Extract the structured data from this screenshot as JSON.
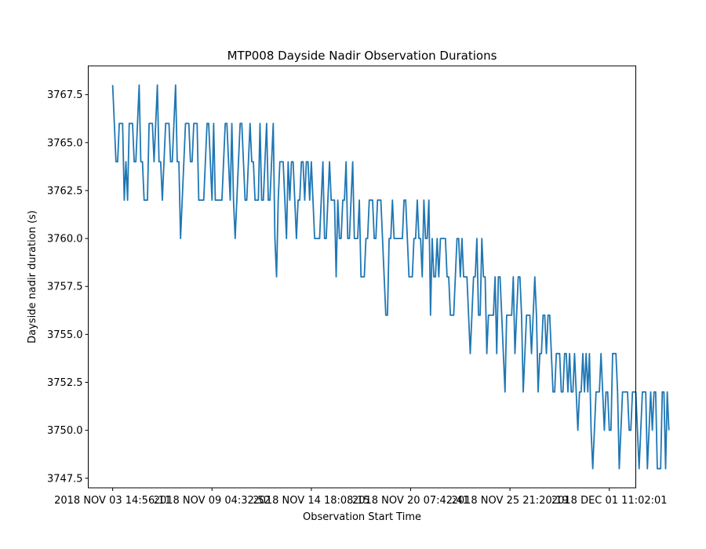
{
  "chart_data": {
    "type": "line",
    "title": "MTP008 Dayside Nadir Observation Durations",
    "xlabel": "Observation Start Time",
    "ylabel": "Dayside nadir duration (s)",
    "ylim": [
      3747,
      3769
    ],
    "yticks": [
      3747.5,
      3750.0,
      3752.5,
      3755.0,
      3757.5,
      3760.0,
      3762.5,
      3765.0,
      3767.5
    ],
    "ytick_labels": [
      "3747.5",
      "3750.0",
      "3752.5",
      "3755.0",
      "3757.5",
      "3760.0",
      "3762.5",
      "3765.0",
      "3767.5"
    ],
    "xticks": [
      {
        "index": 0,
        "label": "2018 NOV 03 14:56:11"
      },
      {
        "index": 60,
        "label": "2018 NOV 09 04:32:52"
      },
      {
        "index": 120,
        "label": "2018 NOV 14 18:08:15"
      },
      {
        "index": 180,
        "label": "2018 NOV 20 07:42:41"
      },
      {
        "index": 240,
        "label": "2018 NOV 25 21:20:19"
      },
      {
        "index": 300,
        "label": "2018 DEC 01 11:02:01"
      }
    ],
    "x_index_range": [
      -14.75,
      316
    ],
    "grid": false,
    "series": [
      {
        "color": "#1f77b4",
        "values": [
          3768,
          3766,
          3764,
          3764,
          3766,
          3766,
          3766,
          3762,
          3764,
          3762,
          3766,
          3766,
          3766,
          3764,
          3764,
          3766,
          3768,
          3764,
          3764,
          3762,
          3762,
          3762,
          3766,
          3766,
          3766,
          3764,
          3766,
          3768,
          3764,
          3764,
          3762,
          3764,
          3766,
          3766,
          3766,
          3764,
          3764,
          3766,
          3768,
          3764,
          3764,
          3760,
          3762,
          3764,
          3766,
          3766,
          3766,
          3764,
          3764,
          3766,
          3766,
          3766,
          3762,
          3762,
          3762,
          3762,
          3764,
          3766,
          3766,
          3764,
          3762,
          3766,
          3762,
          3762,
          3762,
          3762,
          3762,
          3764,
          3766,
          3766,
          3764,
          3762,
          3766,
          3762,
          3760,
          3762,
          3764,
          3766,
          3766,
          3764,
          3762,
          3762,
          3764,
          3766,
          3764,
          3764,
          3762,
          3762,
          3762,
          3766,
          3762,
          3762,
          3764,
          3766,
          3762,
          3762,
          3764,
          3766,
          3760,
          3758,
          3762,
          3764,
          3764,
          3764,
          3762,
          3760,
          3764,
          3762,
          3764,
          3764,
          3762,
          3760,
          3762,
          3762,
          3764,
          3764,
          3762,
          3764,
          3764,
          3762,
          3764,
          3762,
          3760,
          3760,
          3760,
          3760,
          3762,
          3764,
          3760,
          3760,
          3762,
          3764,
          3762,
          3762,
          3762,
          3758,
          3762,
          3760,
          3760,
          3762,
          3762,
          3764,
          3760,
          3760,
          3762,
          3764,
          3760,
          3760,
          3760,
          3762,
          3758,
          3758,
          3758,
          3760,
          3760,
          3762,
          3762,
          3762,
          3760,
          3760,
          3762,
          3762,
          3762,
          3760,
          3758,
          3756,
          3756,
          3760,
          3760,
          3762,
          3760,
          3760,
          3760,
          3760,
          3760,
          3760,
          3762,
          3762,
          3760,
          3758,
          3758,
          3758,
          3760,
          3760,
          3762,
          3760,
          3760,
          3758,
          3762,
          3760,
          3760,
          3762,
          3756,
          3760,
          3758,
          3758,
          3760,
          3758,
          3760,
          3760,
          3760,
          3760,
          3758,
          3758,
          3756,
          3756,
          3756,
          3758,
          3760,
          3760,
          3758,
          3760,
          3758,
          3758,
          3758,
          3756,
          3754,
          3756,
          3758,
          3758,
          3760,
          3756,
          3756,
          3760,
          3758,
          3758,
          3754,
          3756,
          3756,
          3756,
          3756,
          3758,
          3754,
          3758,
          3758,
          3756,
          3754,
          3752,
          3756,
          3756,
          3756,
          3756,
          3758,
          3754,
          3756,
          3758,
          3758,
          3756,
          3752,
          3754,
          3756,
          3756,
          3756,
          3754,
          3756,
          3758,
          3756,
          3752,
          3754,
          3754,
          3756,
          3756,
          3754,
          3756,
          3756,
          3754,
          3752,
          3752,
          3754,
          3754,
          3754,
          3752,
          3752,
          3754,
          3754,
          3752,
          3754,
          3752,
          3752,
          3754,
          3752,
          3750,
          3752,
          3752,
          3754,
          3752,
          3754,
          3752,
          3754,
          3750,
          3748,
          3750,
          3752,
          3752,
          3752,
          3754,
          3752,
          3750,
          3752,
          3752,
          3750,
          3750,
          3754,
          3754,
          3754,
          3752,
          3748,
          3750,
          3752,
          3752,
          3752,
          3752,
          3750,
          3750,
          3752,
          3752,
          3752,
          3750,
          3748,
          3750,
          3752,
          3752,
          3752,
          3748,
          3750,
          3752,
          3750,
          3752,
          3752,
          3748,
          3748,
          3748,
          3752,
          3752,
          3748,
          3752,
          3750
        ]
      }
    ]
  }
}
